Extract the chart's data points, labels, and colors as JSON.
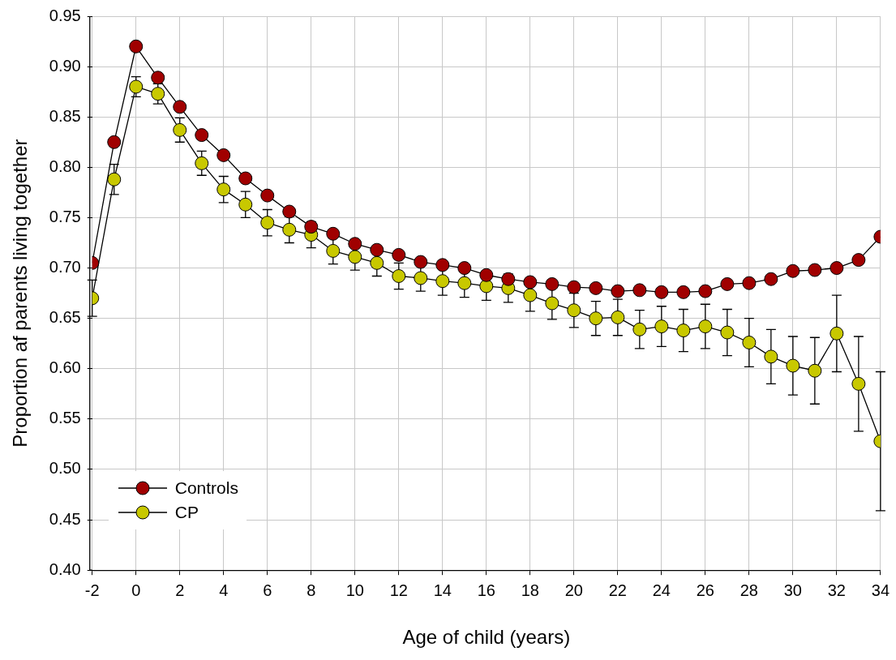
{
  "chart_data": {
    "type": "line",
    "xlabel": "Age of child (years)",
    "ylabel": "Proportion af parents living together",
    "x": [
      -2,
      -1,
      0,
      1,
      2,
      3,
      4,
      5,
      6,
      7,
      8,
      9,
      10,
      11,
      12,
      13,
      14,
      15,
      16,
      17,
      18,
      19,
      20,
      21,
      22,
      23,
      24,
      25,
      26,
      27,
      28,
      29,
      30,
      31,
      32,
      33,
      34
    ],
    "xlim": [
      -2,
      34
    ],
    "xticks": [
      -2,
      0,
      2,
      4,
      6,
      8,
      10,
      12,
      14,
      16,
      18,
      20,
      22,
      24,
      26,
      28,
      30,
      32,
      34
    ],
    "ylim": [
      0.4,
      0.95
    ],
    "yticks": [
      {
        "value": 0.4,
        "label": "0.40"
      },
      {
        "value": 0.45,
        "label": "0.45"
      },
      {
        "value": 0.5,
        "label": "0.50"
      },
      {
        "value": 0.55,
        "label": "0.55"
      },
      {
        "value": 0.6,
        "label": "0.60"
      },
      {
        "value": 0.65,
        "label": "0.65"
      },
      {
        "value": 0.7,
        "label": "0.70"
      },
      {
        "value": 0.75,
        "label": "0.75"
      },
      {
        "value": 0.8,
        "label": "0.80"
      },
      {
        "value": 0.85,
        "label": "0.85"
      },
      {
        "value": 0.9,
        "label": "0.90"
      },
      {
        "value": 0.95,
        "label": "0.95"
      }
    ],
    "grid": true,
    "legend": "bottom left",
    "marker": "circle",
    "line_style": "solid",
    "series": [
      {
        "name": "Controls",
        "color": "#a00000",
        "values": [
          0.705,
          0.825,
          0.92,
          0.889,
          0.86,
          0.832,
          0.812,
          0.789,
          0.772,
          0.756,
          0.741,
          0.734,
          0.724,
          0.718,
          0.713,
          0.706,
          0.703,
          0.7,
          0.693,
          0.689,
          0.686,
          0.684,
          0.681,
          0.68,
          0.677,
          0.678,
          0.676,
          0.676,
          0.677,
          0.684,
          0.685,
          0.689,
          0.697,
          0.698,
          0.7,
          0.708,
          0.731
        ]
      },
      {
        "name": "CP",
        "color": "#c8c800",
        "values": [
          0.67,
          0.788,
          0.88,
          0.873,
          0.837,
          0.804,
          0.778,
          0.763,
          0.745,
          0.738,
          0.733,
          0.717,
          0.711,
          0.705,
          0.692,
          0.69,
          0.687,
          0.685,
          0.682,
          0.68,
          0.673,
          0.665,
          0.658,
          0.65,
          0.651,
          0.639,
          0.642,
          0.638,
          0.642,
          0.636,
          0.626,
          0.612,
          0.603,
          0.598,
          0.635,
          0.585,
          0.528
        ],
        "errors": [
          0.018,
          0.015,
          0.01,
          0.01,
          0.012,
          0.012,
          0.013,
          0.013,
          0.013,
          0.013,
          0.013,
          0.013,
          0.013,
          0.013,
          0.013,
          0.013,
          0.014,
          0.014,
          0.014,
          0.014,
          0.016,
          0.016,
          0.017,
          0.017,
          0.018,
          0.019,
          0.02,
          0.021,
          0.022,
          0.023,
          0.024,
          0.027,
          0.029,
          0.033,
          0.038,
          0.047,
          0.069
        ]
      }
    ]
  }
}
